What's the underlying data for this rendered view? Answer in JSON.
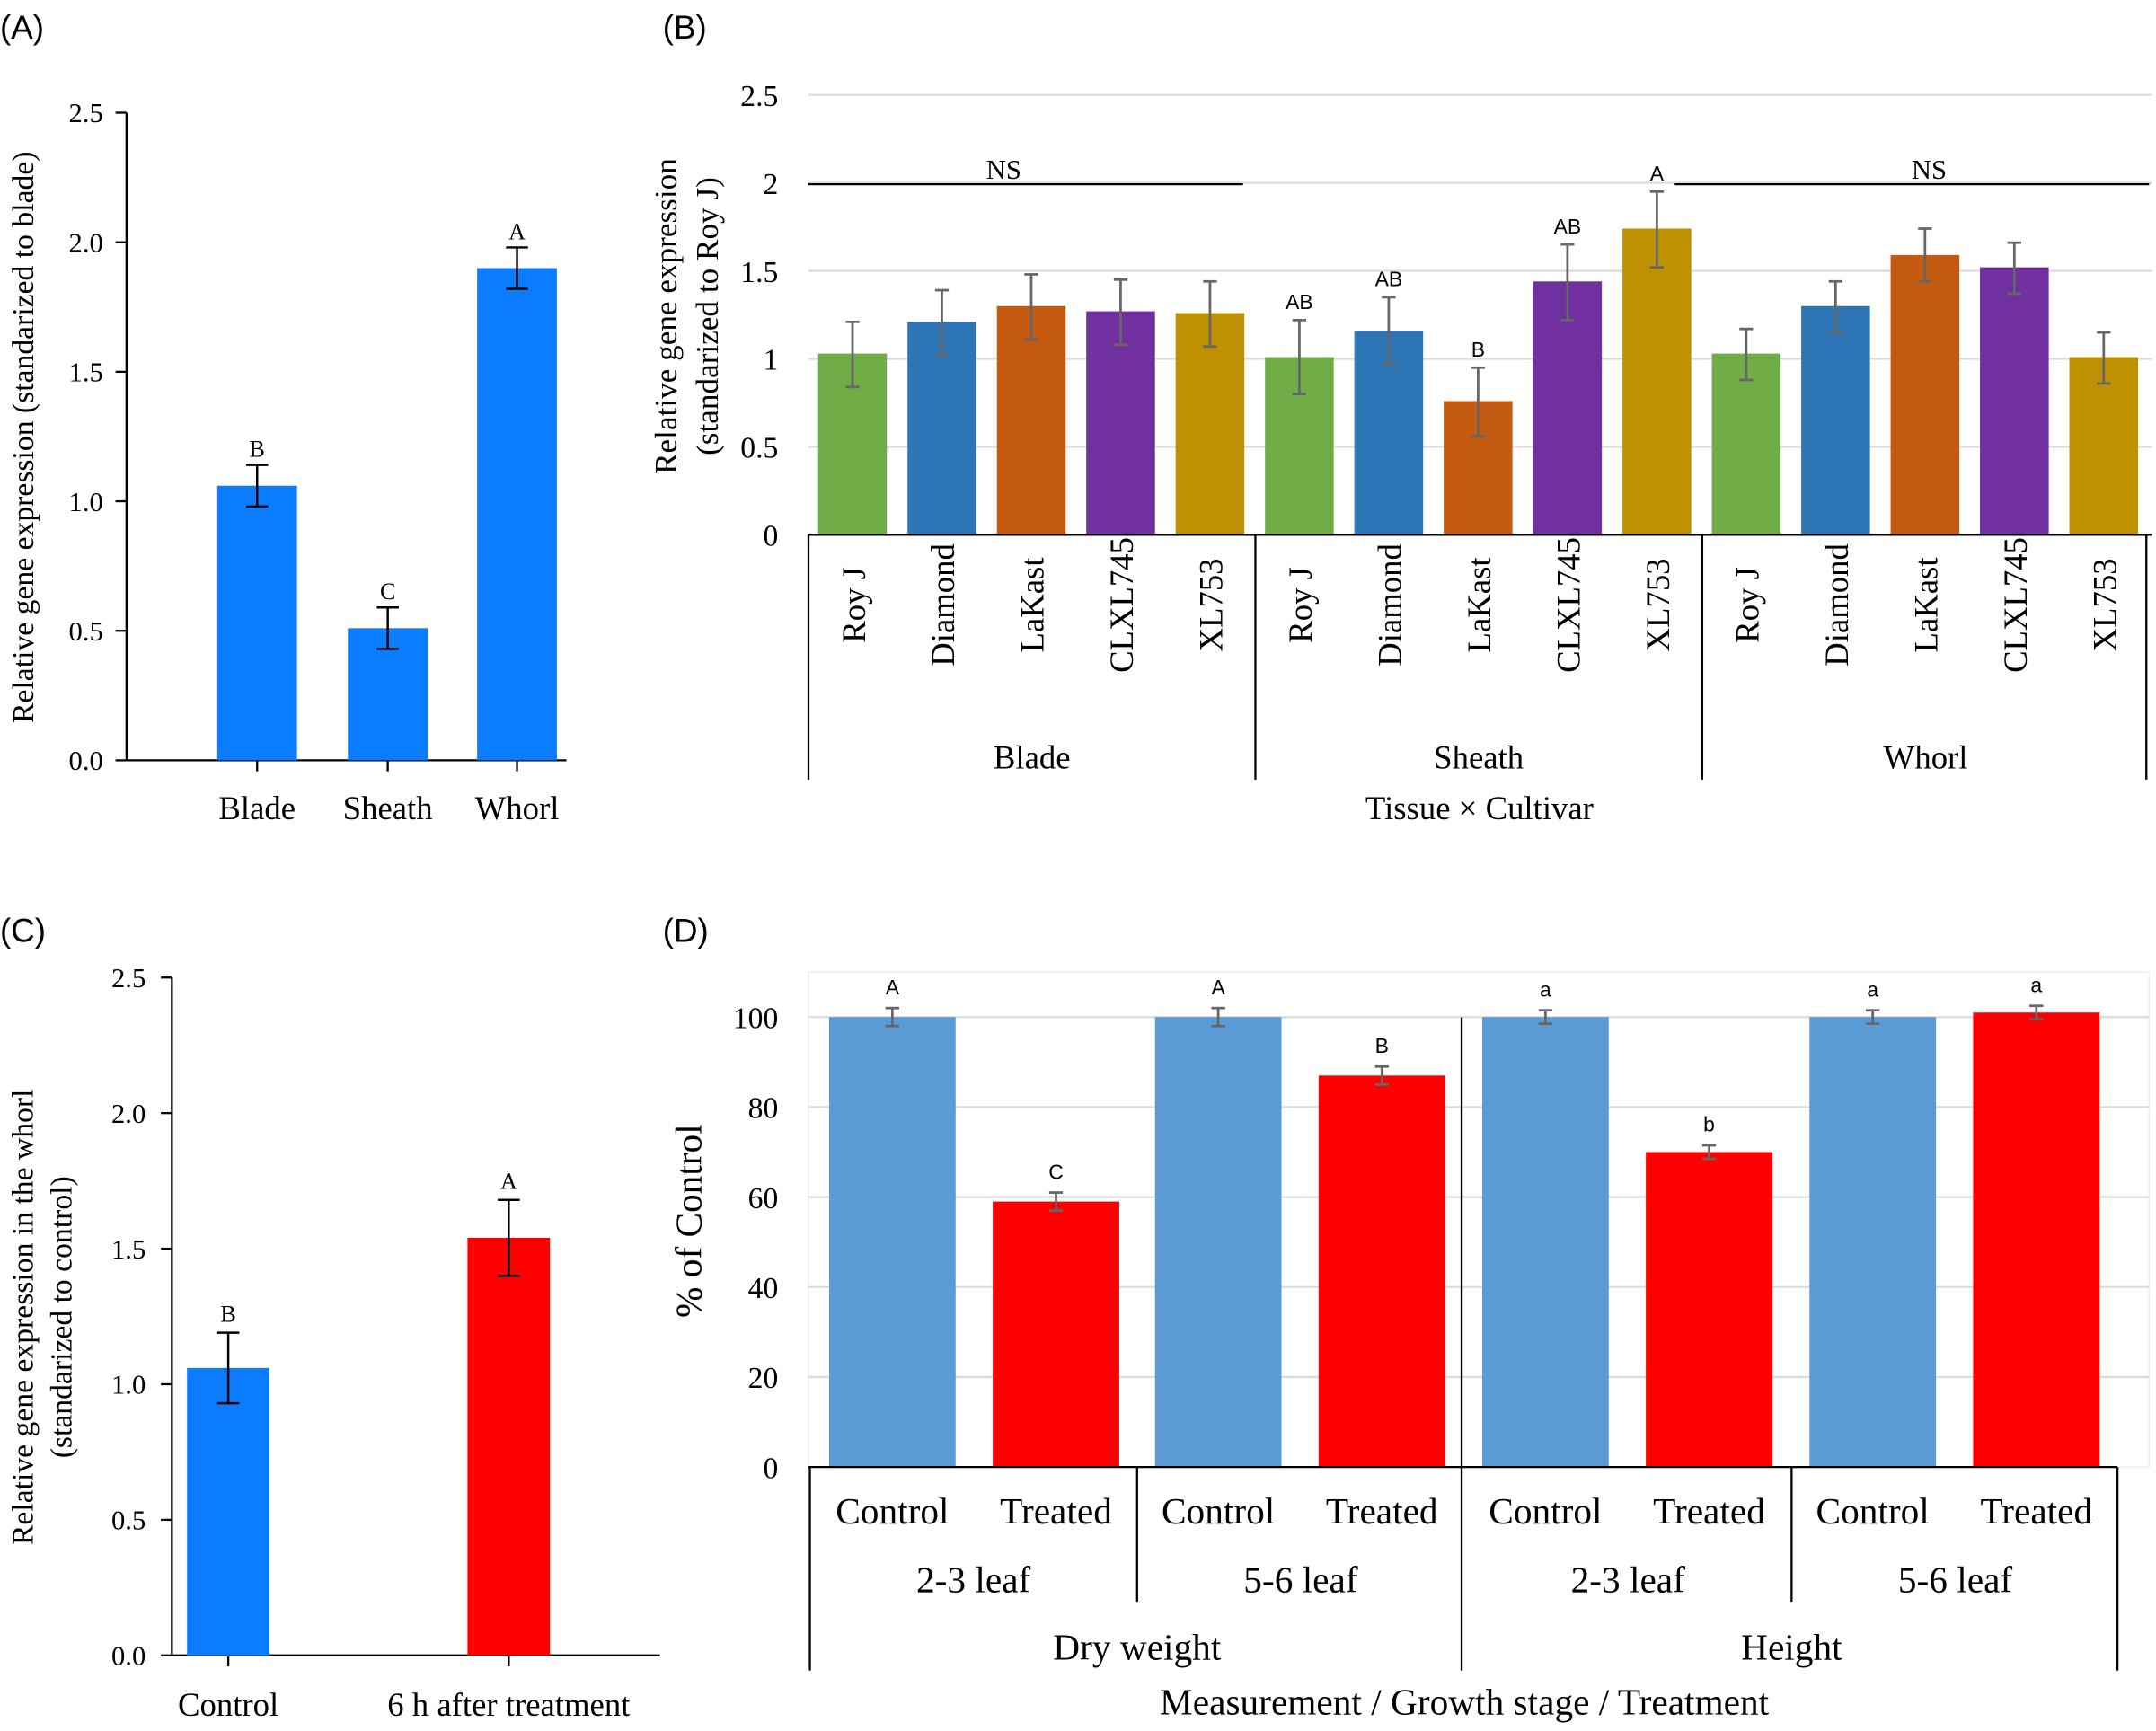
{
  "chart_data": [
    {
      "panel_label": "(A)",
      "type": "bar",
      "ylabel": "Relative gene expression (standarized to blade)",
      "ylim": [
        0,
        2.5
      ],
      "yticks": [
        "0.0",
        "0.5",
        "1.0",
        "1.5",
        "2.0",
        "2.5"
      ],
      "categories": [
        "Blade",
        "Sheath",
        "Whorl"
      ],
      "values": [
        1.06,
        0.51,
        1.9
      ],
      "error": [
        [
          0.98,
          1.14
        ],
        [
          0.43,
          0.59
        ],
        [
          1.82,
          1.98
        ]
      ],
      "letters": [
        "B",
        "C",
        "A"
      ],
      "color": "#0a7cfd",
      "grid": false
    },
    {
      "panel_label": "(B)",
      "type": "bar",
      "ylabel": "Relative gene expression",
      "ylabel2": "(standarized to Roy J)",
      "xlabel": "Tissue × Cultivar",
      "ylim": [
        0,
        2.5
      ],
      "yticks": [
        "0",
        "0.5",
        "1",
        "1.5",
        "2",
        "2.5"
      ],
      "groups": [
        "Blade",
        "Sheath",
        "Whorl"
      ],
      "cultivars": [
        "Roy J",
        "Diamond",
        "LaKast",
        "CLXL745",
        "XL753"
      ],
      "cultivar_colors": [
        "#70ad47",
        "#2e75b6",
        "#c55a11",
        "#7030a0",
        "#bf9000"
      ],
      "values": [
        [
          1.03,
          1.21,
          1.3,
          1.27,
          1.26
        ],
        [
          1.01,
          1.16,
          0.76,
          1.44,
          1.74
        ],
        [
          1.03,
          1.3,
          1.59,
          1.52,
          1.01
        ]
      ],
      "error": [
        [
          [
            0.84,
            1.21
          ],
          [
            1.02,
            1.39
          ],
          [
            1.11,
            1.48
          ],
          [
            1.08,
            1.45
          ],
          [
            1.07,
            1.44
          ]
        ],
        [
          [
            0.8,
            1.22
          ],
          [
            0.97,
            1.35
          ],
          [
            0.56,
            0.95
          ],
          [
            1.22,
            1.65
          ],
          [
            1.52,
            1.95
          ]
        ],
        [
          [
            0.88,
            1.17
          ],
          [
            1.15,
            1.44
          ],
          [
            1.44,
            1.74
          ],
          [
            1.37,
            1.66
          ],
          [
            0.86,
            1.15
          ]
        ]
      ],
      "letters": [
        [
          "",
          "",
          "",
          "",
          ""
        ],
        [
          "AB",
          "AB",
          "B",
          "AB",
          "A"
        ],
        [
          "",
          "",
          "",
          "",
          ""
        ]
      ],
      "group_annotations": [
        "NS",
        "",
        "NS"
      ],
      "grid": true
    },
    {
      "panel_label": "(C)",
      "type": "bar",
      "ylabel": "Relative gene expression in the whorl",
      "ylabel2": "(standarized to control)",
      "ylim": [
        0,
        2.5
      ],
      "yticks": [
        "0.0",
        "0.5",
        "1.0",
        "1.5",
        "2.0",
        "2.5"
      ],
      "categories": [
        "Control",
        "6 h after treatment"
      ],
      "values": [
        1.06,
        1.54
      ],
      "error": [
        [
          0.93,
          1.19
        ],
        [
          1.4,
          1.68
        ]
      ],
      "letters": [
        "B",
        "A"
      ],
      "colors": [
        "#0a7cfd",
        "#ff0000"
      ],
      "grid": false
    },
    {
      "panel_label": "(D)",
      "type": "bar",
      "ylabel": "% of Control",
      "xlabel": "Measurement / Growth stage / Treatment",
      "ylim": [
        0,
        110
      ],
      "yticks": [
        "0",
        "20",
        "40",
        "60",
        "80",
        "100"
      ],
      "measurements": [
        "Dry weight",
        "Height"
      ],
      "stages": [
        "2-3 leaf",
        "5-6 leaf",
        "2-3 leaf",
        "5-6 leaf"
      ],
      "treatments": [
        "Control",
        "Treated",
        "Control",
        "Treated",
        "Control",
        "Treated",
        "Control",
        "Treated"
      ],
      "values": [
        100,
        59,
        100,
        87,
        100,
        70,
        100,
        101
      ],
      "error": [
        [
          98,
          102
        ],
        [
          57,
          61
        ],
        [
          98,
          102
        ],
        [
          85,
          89
        ],
        [
          98.5,
          101.5
        ],
        [
          68.5,
          71.5
        ],
        [
          98.5,
          101.5
        ],
        [
          99.5,
          102.5
        ]
      ],
      "letters": [
        "A",
        "C",
        "A",
        "B",
        "a",
        "b",
        "a",
        "a"
      ],
      "colors": {
        "Control": "#5b9bd5",
        "Treated": "#ff0000"
      },
      "grid": true
    }
  ]
}
